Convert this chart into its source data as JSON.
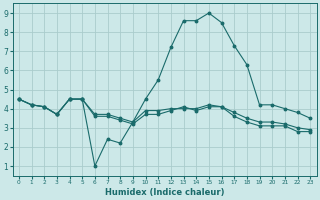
{
  "title": "",
  "xlabel": "Humidex (Indice chaleur)",
  "bg_color": "#cce8e8",
  "grid_color": "#aacccc",
  "line_color": "#1a6b6b",
  "xlim": [
    -0.5,
    23.5
  ],
  "ylim": [
    0.5,
    9.5
  ],
  "xticks": [
    0,
    1,
    2,
    3,
    4,
    5,
    6,
    7,
    8,
    9,
    10,
    11,
    12,
    13,
    14,
    15,
    16,
    17,
    18,
    19,
    20,
    21,
    22,
    23
  ],
  "yticks": [
    1,
    2,
    3,
    4,
    5,
    6,
    7,
    8,
    9
  ],
  "line1_x": [
    0,
    1,
    2,
    3,
    4,
    5,
    6,
    7,
    8,
    9,
    10,
    11,
    12,
    13,
    14,
    15,
    16,
    17,
    18,
    19,
    20,
    21,
    22,
    23
  ],
  "line1_y": [
    4.5,
    4.2,
    4.1,
    3.7,
    4.5,
    4.5,
    3.7,
    3.7,
    3.5,
    3.3,
    3.9,
    3.9,
    4.0,
    4.0,
    4.0,
    4.2,
    4.1,
    3.8,
    3.5,
    3.3,
    3.3,
    3.2,
    3.0,
    2.9
  ],
  "line2_x": [
    0,
    1,
    2,
    3,
    4,
    5,
    6,
    7,
    8,
    9,
    10,
    11,
    12,
    13,
    14,
    15,
    16,
    17,
    18,
    19,
    20,
    21,
    22,
    23
  ],
  "line2_y": [
    4.5,
    4.2,
    4.1,
    3.7,
    4.5,
    4.5,
    3.6,
    3.6,
    3.4,
    3.2,
    3.7,
    3.7,
    3.9,
    4.1,
    3.9,
    4.1,
    4.1,
    3.6,
    3.3,
    3.1,
    3.1,
    3.1,
    2.8,
    2.8
  ],
  "line3_x": [
    0,
    1,
    2,
    3,
    4,
    5,
    6,
    7,
    8,
    9,
    10,
    11,
    12,
    13,
    14,
    15,
    16,
    17,
    18,
    19,
    20,
    21,
    22,
    23
  ],
  "line3_y": [
    4.5,
    4.2,
    4.1,
    3.7,
    4.5,
    4.5,
    1.0,
    2.4,
    2.2,
    3.3,
    4.5,
    5.5,
    7.2,
    8.6,
    8.6,
    9.0,
    8.5,
    7.3,
    6.3,
    4.2,
    4.2,
    4.0,
    3.8,
    3.5
  ]
}
